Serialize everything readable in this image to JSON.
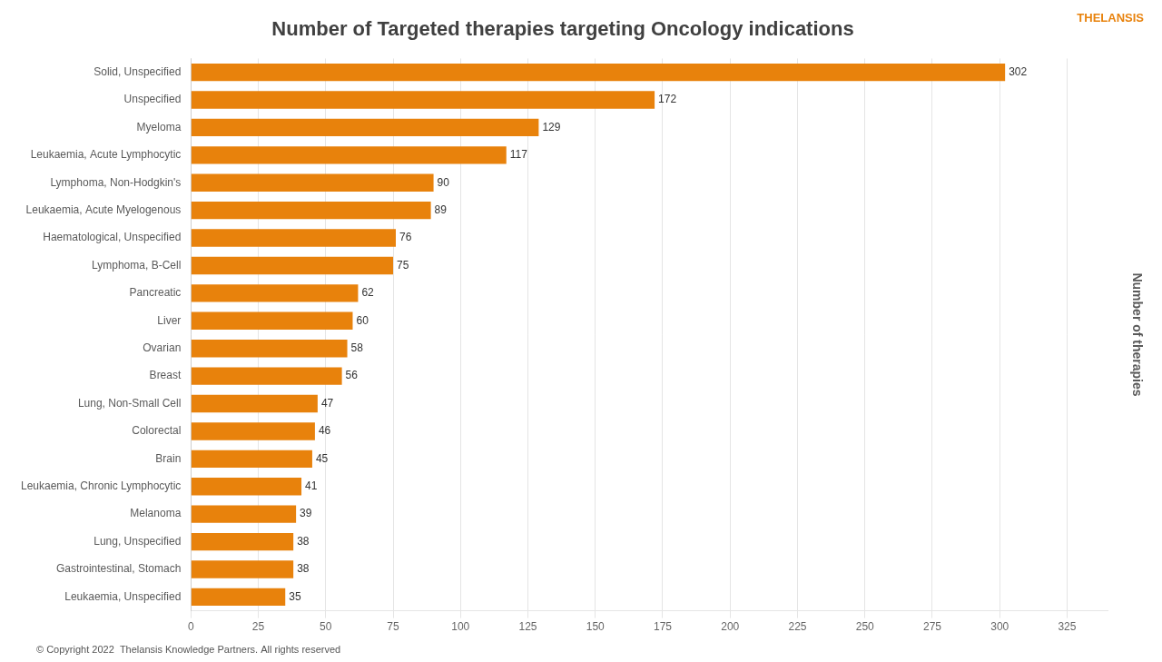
{
  "chart_data": {
    "type": "bar",
    "orientation": "horizontal",
    "title": "Number of Targeted therapies targeting Oncology indications",
    "ylabel": "Number of therapies",
    "annotations": [
      "© Copyright 2022  Thelansis Knowledge Partners. All rights reserved",
      "THELANSIS"
    ],
    "categories": [
      "Solid, Unspecified",
      "Unspecified",
      "Myeloma",
      "Leukaemia, Acute Lymphocytic",
      "Lymphoma, Non-Hodgkin's",
      "Leukaemia, Acute Myelogenous",
      "Haematological, Unspecified",
      "Lymphoma, B-Cell",
      "Pancreatic",
      "Liver",
      "Ovarian",
      "Breast",
      "Lung, Non-Small Cell",
      "Colorectal",
      "Brain",
      "Leukaemia, Chronic Lymphocytic",
      "Melanoma",
      "Lung, Unspecified",
      "Gastrointestinal, Stomach",
      "Leukaemia, Unspecified"
    ],
    "values": [
      302,
      172,
      129,
      117,
      90,
      89,
      76,
      75,
      62,
      60,
      58,
      56,
      47,
      46,
      45,
      41,
      39,
      38,
      38,
      35
    ],
    "color": "#E8820C",
    "xlim": [
      0,
      340
    ],
    "xticks": [
      0,
      25,
      50,
      75,
      100,
      125,
      150,
      175,
      200,
      225,
      250,
      275,
      300,
      325
    ],
    "grid": true,
    "data_labels": true
  }
}
